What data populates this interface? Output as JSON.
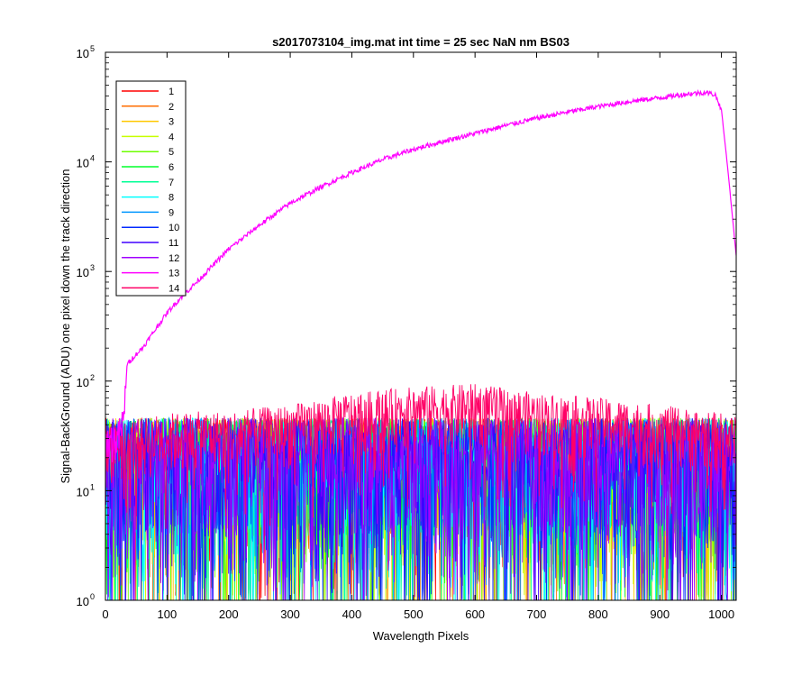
{
  "chart_data": {
    "type": "line",
    "title": "s2017073104_img.mat int time = 25 sec  NaN nm BS03",
    "xlabel": "Wavelength Pixels",
    "ylabel": "Signal-BackGround (ADU) one pixel down the track direction",
    "xlim": [
      0,
      1024
    ],
    "ylim": [
      1,
      100000
    ],
    "yscale": "log",
    "grid": false,
    "legend_position": "top-left",
    "x_ticks": [
      {
        "value": 0,
        "label": "0"
      },
      {
        "value": 100,
        "label": "100"
      },
      {
        "value": 200,
        "label": "200"
      },
      {
        "value": 300,
        "label": "300"
      },
      {
        "value": 400,
        "label": "400"
      },
      {
        "value": 500,
        "label": "500"
      },
      {
        "value": 600,
        "label": "600"
      },
      {
        "value": 700,
        "label": "700"
      },
      {
        "value": 800,
        "label": "800"
      },
      {
        "value": 900,
        "label": "900"
      },
      {
        "value": 1000,
        "label": "1000"
      }
    ],
    "y_ticks": [
      {
        "value": 1,
        "label": "10",
        "exp": "0"
      },
      {
        "value": 10,
        "label": "10",
        "exp": "1"
      },
      {
        "value": 100,
        "label": "10",
        "exp": "2"
      },
      {
        "value": 1000,
        "label": "10",
        "exp": "3"
      },
      {
        "value": 10000,
        "label": "10",
        "exp": "4"
      },
      {
        "value": 100000,
        "label": "10",
        "exp": "5"
      }
    ],
    "series": [
      {
        "name": "1",
        "color": "#ff0000",
        "noise": {
          "level": 25,
          "floor": 1
        }
      },
      {
        "name": "2",
        "color": "#ff6d00",
        "noise": {
          "level": 25,
          "floor": 1
        }
      },
      {
        "name": "3",
        "color": "#ffc800",
        "noise": {
          "level": 25,
          "floor": 1
        }
      },
      {
        "name": "4",
        "color": "#c8ff00",
        "noise": {
          "level": 25,
          "floor": 1
        }
      },
      {
        "name": "5",
        "color": "#6dff00",
        "noise": {
          "level": 25,
          "floor": 1
        }
      },
      {
        "name": "6",
        "color": "#00ff2a",
        "noise": {
          "level": 25,
          "floor": 1
        }
      },
      {
        "name": "7",
        "color": "#00ff96",
        "noise": {
          "level": 25,
          "floor": 1
        }
      },
      {
        "name": "8",
        "color": "#00ffff",
        "noise": {
          "level": 25,
          "floor": 1
        }
      },
      {
        "name": "9",
        "color": "#0096ff",
        "noise": {
          "level": 25,
          "floor": 1
        }
      },
      {
        "name": "10",
        "color": "#002aff",
        "noise": {
          "level": 25,
          "floor": 1
        }
      },
      {
        "name": "11",
        "color": "#4000ff",
        "noise": {
          "level": 25,
          "floor": 1
        }
      },
      {
        "name": "12",
        "color": "#a000ff",
        "noise": {
          "level": 25,
          "floor": 1
        }
      },
      {
        "name": "13",
        "color": "#ff00ff",
        "points": [
          [
            0,
            28
          ],
          [
            20,
            30
          ],
          [
            30,
            45
          ],
          [
            35,
            140
          ],
          [
            45,
            165
          ],
          [
            60,
            200
          ],
          [
            80,
            290
          ],
          [
            100,
            420
          ],
          [
            120,
            560
          ],
          [
            150,
            820
          ],
          [
            200,
            1600
          ],
          [
            250,
            2650
          ],
          [
            300,
            4200
          ],
          [
            350,
            5900
          ],
          [
            400,
            8000
          ],
          [
            450,
            10500
          ],
          [
            500,
            13000
          ],
          [
            550,
            15500
          ],
          [
            600,
            18200
          ],
          [
            650,
            21500
          ],
          [
            700,
            25000
          ],
          [
            750,
            28500
          ],
          [
            800,
            32000
          ],
          [
            850,
            35500
          ],
          [
            900,
            38500
          ],
          [
            950,
            42000
          ],
          [
            975,
            43000
          ],
          [
            990,
            41000
          ],
          [
            1000,
            30000
          ],
          [
            1010,
            9000
          ],
          [
            1024,
            1400
          ]
        ]
      },
      {
        "name": "14",
        "color": "#ff0066",
        "band": [
          [
            0,
            30
          ],
          [
            100,
            38
          ],
          [
            200,
            40
          ],
          [
            300,
            45
          ],
          [
            400,
            58
          ],
          [
            500,
            66
          ],
          [
            600,
            70
          ],
          [
            700,
            58
          ],
          [
            800,
            52
          ],
          [
            900,
            45
          ],
          [
            1000,
            38
          ],
          [
            1024,
            35
          ]
        ]
      }
    ]
  }
}
